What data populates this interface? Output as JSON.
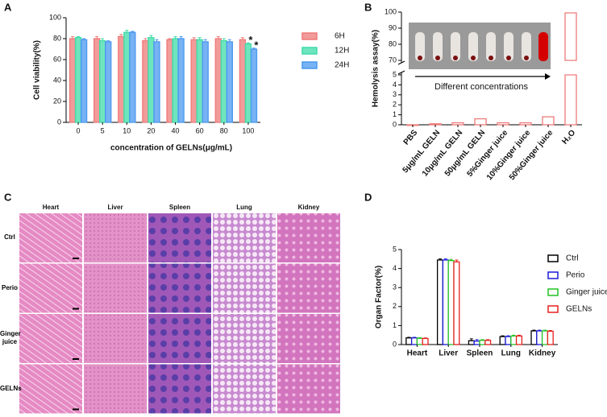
{
  "chart_data": [
    {
      "type": "bar",
      "panel": "A",
      "ylabel": "Cell viability(%)",
      "xlabel": "concentration of GELNs(μg/mL)",
      "categories": [
        "0",
        "5",
        "10",
        "20",
        "40",
        "60",
        "80",
        "100"
      ],
      "series": [
        {
          "name": "6H",
          "color": "#ee7a78",
          "values": [
            80,
            80,
            82,
            78,
            79,
            79,
            80,
            79
          ],
          "errors": [
            2,
            2,
            2,
            2,
            1,
            2,
            2,
            2
          ]
        },
        {
          "name": "12H",
          "color": "#3fdca8",
          "values": [
            81,
            78,
            86,
            81,
            80,
            79,
            78,
            75
          ],
          "errors": [
            1,
            2,
            2,
            2,
            2,
            2,
            2,
            1
          ]
        },
        {
          "name": "24H",
          "color": "#4a98f0",
          "values": [
            79,
            77,
            86,
            77,
            80,
            77,
            77,
            70
          ],
          "errors": [
            1,
            1,
            1,
            2,
            2,
            2,
            2,
            1
          ]
        }
      ],
      "filled": true,
      "annotations": [
        "*",
        "*"
      ],
      "ylim": [
        0,
        100
      ],
      "yticks": [
        0,
        20,
        40,
        60,
        80,
        100
      ],
      "grid": false
    },
    {
      "type": "bar",
      "panel": "B",
      "ylabel": "Hemolysis assay(%)",
      "annotation": "Different concentrations",
      "categories": [
        "PBS",
        "5μg/mL GELN",
        "10μg/mL GELN",
        "50μg/mL GELN",
        "5%Ginger juice",
        "10%Ginger juice",
        "50%Ginger juice",
        "H₂O"
      ],
      "series": [
        {
          "name": "Hemolysis",
          "color": "#ee7a78",
          "values": [
            0,
            0.1,
            0.2,
            0.6,
            0.2,
            0.2,
            0.8,
            99.5
          ]
        }
      ],
      "filled": false,
      "axis_break": [
        5,
        70
      ],
      "ylim": [
        0,
        100
      ],
      "yticks": [
        0,
        1,
        2,
        3,
        4,
        5,
        70,
        80,
        90,
        100
      ],
      "grid": false
    },
    {
      "type": "bar",
      "panel": "D",
      "ylabel": "Organ Factor(%)",
      "categories": [
        "Heart",
        "Liver",
        "Spleen",
        "Lung",
        "Kidney"
      ],
      "series": [
        {
          "name": "Ctrl",
          "color": "#000000",
          "values": [
            0.35,
            4.45,
            0.2,
            0.42,
            0.72
          ],
          "errors": [
            0.03,
            0.06,
            0.1,
            0.04,
            0.04
          ]
        },
        {
          "name": "Perio",
          "color": "#1a1ad8",
          "values": [
            0.35,
            4.45,
            0.18,
            0.42,
            0.72
          ],
          "errors": [
            0.03,
            0.06,
            0.08,
            0.04,
            0.04
          ]
        },
        {
          "name": "Ginger juice",
          "color": "#22c322",
          "values": [
            0.33,
            4.42,
            0.22,
            0.45,
            0.72
          ],
          "errors": [
            0.03,
            0.06,
            0.04,
            0.04,
            0.04
          ]
        },
        {
          "name": "GELNs",
          "color": "#e82020",
          "values": [
            0.32,
            4.35,
            0.22,
            0.45,
            0.7
          ],
          "errors": [
            0.03,
            0.1,
            0.04,
            0.04,
            0.04
          ]
        }
      ],
      "filled": false,
      "ylim": [
        0,
        5
      ],
      "yticks": [
        0,
        1,
        2,
        3,
        4,
        5
      ],
      "grid": false
    }
  ],
  "image_panel": {
    "panel": "C",
    "columns": [
      "Heart",
      "Liver",
      "Spleen",
      "Lung",
      "Kidney"
    ],
    "rows": [
      "Ctrl",
      "Perio",
      "Ginger juice",
      "GELNs"
    ]
  }
}
